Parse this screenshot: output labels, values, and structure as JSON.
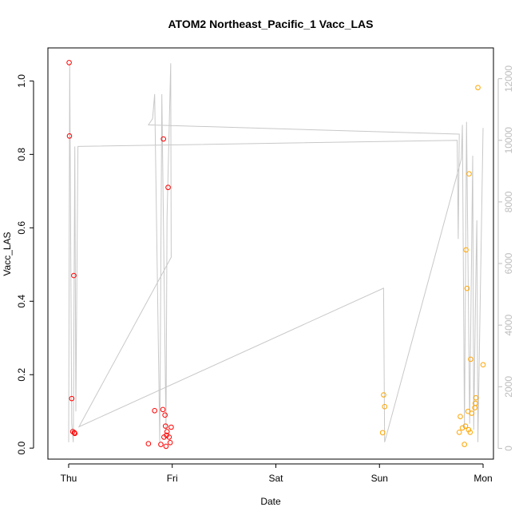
{
  "chart_data": {
    "type": "scatter",
    "title": "ATOM2 Northeast_Pacific_1 Vacc_LAS",
    "xlabel": "Date",
    "ylabel": "Vacc_LAS",
    "x_unit": "days",
    "x_ticks": [
      {
        "label": "Thu",
        "value": 0
      },
      {
        "label": "Fri",
        "value": 1
      },
      {
        "label": "Sat",
        "value": 2
      },
      {
        "label": "Sun",
        "value": 3
      },
      {
        "label": "Mon",
        "value": 4
      }
    ],
    "xlim": [
      -0.2,
      4.1
    ],
    "ylim": [
      -0.03,
      1.09
    ],
    "y_ticks": [
      0.0,
      0.2,
      0.4,
      0.6,
      0.8,
      1.0
    ],
    "y_tick_labels": [
      "0.0",
      "0.2",
      "0.4",
      "0.6",
      "0.8",
      "1.0"
    ],
    "y2lim": [
      -350,
      13000
    ],
    "y2_ticks": [
      0,
      2000,
      4000,
      6000,
      8000,
      10000,
      12000
    ],
    "grid": false,
    "series": [
      {
        "color": "#ff0000",
        "marker": "open-circle",
        "points": [
          [
            0.005,
            1.05
          ],
          [
            0.008,
            0.85
          ],
          [
            0.03,
            0.135
          ],
          [
            0.04,
            0.045
          ],
          [
            0.05,
            0.47
          ],
          [
            0.055,
            0.042
          ],
          [
            0.06,
            0.04
          ],
          [
            0.77,
            0.012
          ],
          [
            0.83,
            0.102
          ],
          [
            0.89,
            0.01
          ],
          [
            0.91,
            0.105
          ],
          [
            0.915,
            0.842
          ],
          [
            0.92,
            0.03
          ],
          [
            0.93,
            0.09
          ],
          [
            0.935,
            0.06
          ],
          [
            0.94,
            0.005
          ],
          [
            0.945,
            0.035
          ],
          [
            0.95,
            0.045
          ],
          [
            0.96,
            0.71
          ],
          [
            0.97,
            0.03
          ],
          [
            0.98,
            0.015
          ],
          [
            0.99,
            0.057
          ]
        ]
      },
      {
        "color": "#ffa500",
        "marker": "open-circle",
        "points": [
          [
            3.03,
            0.042
          ],
          [
            3.04,
            0.145
          ],
          [
            3.05,
            0.113
          ],
          [
            3.77,
            0.043
          ],
          [
            3.78,
            0.086
          ],
          [
            3.8,
            0.055
          ],
          [
            3.82,
            0.01
          ],
          [
            3.83,
            0.06
          ],
          [
            3.835,
            0.54
          ],
          [
            3.845,
            0.435
          ],
          [
            3.855,
            0.1
          ],
          [
            3.86,
            0.05
          ],
          [
            3.865,
            0.747
          ],
          [
            3.875,
            0.043
          ],
          [
            3.88,
            0.242
          ],
          [
            3.89,
            0.095
          ],
          [
            3.92,
            0.11
          ],
          [
            3.925,
            0.122
          ],
          [
            3.93,
            0.137
          ],
          [
            3.95,
            0.982
          ],
          [
            4.0,
            0.227
          ]
        ]
      },
      {
        "color": "#c8c8c8",
        "marker": "line",
        "axis": "right",
        "points": [
          [
            0.0,
            200
          ],
          [
            0.01,
            12500
          ],
          [
            0.03,
            800
          ],
          [
            0.045,
            200
          ],
          [
            0.06,
            9800
          ],
          [
            0.07,
            1200
          ],
          [
            0.09,
            9800
          ],
          [
            3.75,
            10000
          ],
          [
            3.76,
            6800
          ],
          [
            3.77,
            10200
          ],
          [
            0.77,
            10500
          ],
          [
            0.81,
            10700
          ],
          [
            0.83,
            11500
          ],
          [
            0.88,
            200
          ],
          [
            0.9,
            11500
          ],
          [
            0.94,
            600
          ],
          [
            0.95,
            7500
          ],
          [
            0.985,
            12500
          ],
          [
            0.99,
            6200
          ],
          [
            0.1,
            700
          ],
          [
            3.04,
            5200
          ],
          [
            3.05,
            200
          ],
          [
            3.79,
            9400
          ],
          [
            3.8,
            10500
          ],
          [
            3.82,
            600
          ],
          [
            3.84,
            10600
          ],
          [
            3.87,
            800
          ],
          [
            3.9,
            9500
          ],
          [
            3.91,
            600
          ],
          [
            3.93,
            5500
          ],
          [
            3.94,
            7400
          ],
          [
            3.95,
            200
          ],
          [
            4.0,
            10400
          ]
        ]
      }
    ]
  }
}
